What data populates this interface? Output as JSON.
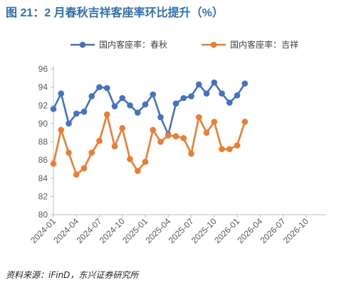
{
  "header": {
    "title": "图 21：2 月春秋吉祥客座率环比提升（%）"
  },
  "footer": {
    "source": "资料来源：iFinD，东兴证券研究所"
  },
  "chart_data": {
    "type": "line",
    "title": "图 21：2 月春秋吉祥客座率环比提升（%）",
    "xlabel": "",
    "ylabel": "",
    "ylim": [
      80,
      96
    ],
    "yticks": [
      80,
      82,
      84,
      86,
      88,
      90,
      92,
      94,
      96
    ],
    "xticks": [
      "2024-01",
      "2024-04",
      "2024-07",
      "2024-10",
      "2025-01",
      "2025-04",
      "2025-07",
      "2025-10",
      "2026-01",
      "2026-04",
      "2026-07",
      "2026-10"
    ],
    "grid": false,
    "legend": "top",
    "x": [
      "2024-01",
      "2024-02",
      "2024-03",
      "2024-04",
      "2024-05",
      "2024-06",
      "2024-07",
      "2024-08",
      "2024-09",
      "2024-10",
      "2024-11",
      "2024-12",
      "2025-01",
      "2025-02",
      "2025-03",
      "2025-04",
      "2025-05",
      "2025-06",
      "2025-07",
      "2025-08",
      "2025-09",
      "2025-10",
      "2025-11",
      "2025-12",
      "2026-01",
      "2026-02"
    ],
    "series": [
      {
        "name": "国内客座率：春秋",
        "color": "#4472c4",
        "values": [
          91.6,
          93.3,
          90.0,
          91.1,
          91.3,
          93.0,
          94.0,
          93.9,
          91.9,
          92.8,
          92.0,
          91.2,
          92.1,
          93.2,
          90.7,
          88.8,
          92.2,
          92.8,
          93.0,
          94.3,
          93.3,
          94.5,
          93.3,
          92.3,
          93.1,
          94.4
        ]
      },
      {
        "name": "国内客座率：吉祥",
        "color": "#ed7d31",
        "values": [
          85.6,
          89.3,
          86.8,
          84.4,
          85.1,
          86.8,
          88.1,
          91.0,
          87.5,
          89.5,
          86.1,
          84.8,
          85.8,
          89.3,
          88.0,
          88.7,
          88.6,
          88.4,
          86.7,
          90.7,
          89.0,
          90.2,
          87.2,
          87.2,
          87.6,
          90.2
        ]
      }
    ]
  }
}
